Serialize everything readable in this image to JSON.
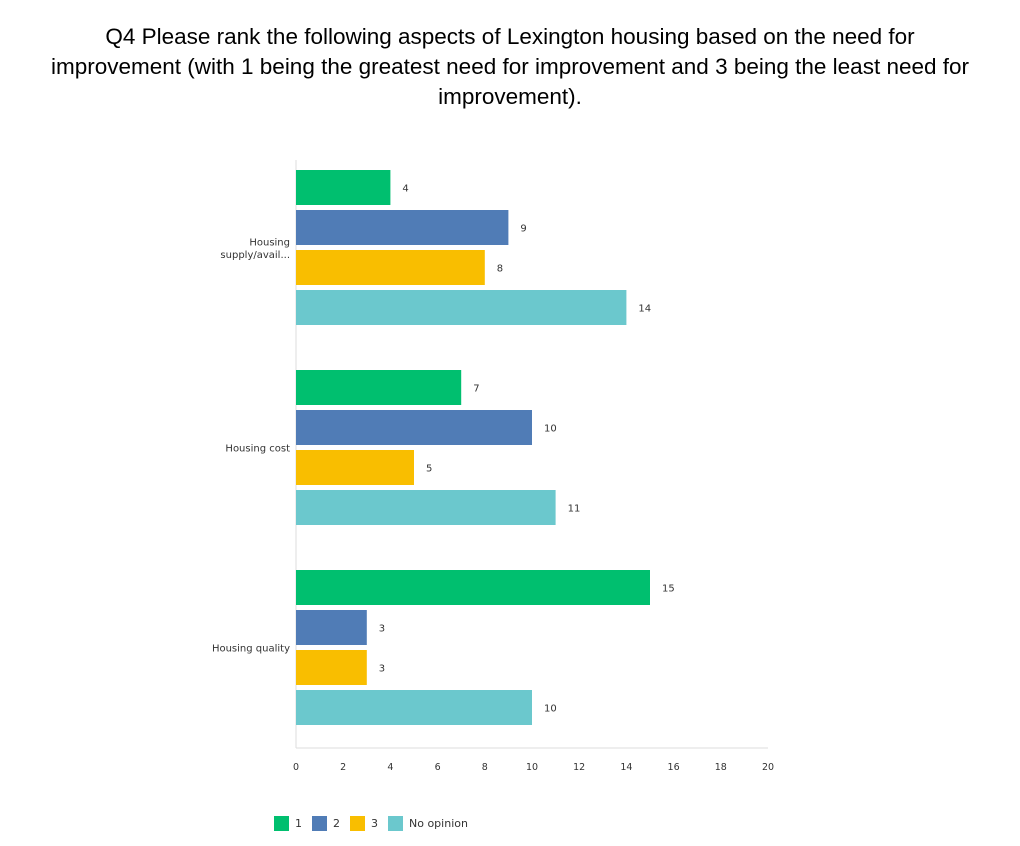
{
  "title_lines": [
    "Q4 Please rank the following aspects of Lexington housing based on the need for",
    "improvement (with 1 being the greatest need for improvement and 3 being the least need for",
    "improvement)."
  ],
  "colors": {
    "s1": "#00bf6f",
    "s2": "#507cb6",
    "s3": "#f9be00",
    "s4": "#6bc8cd",
    "axis": "#dddddd"
  },
  "chart_data": {
    "type": "bar",
    "orientation": "horizontal",
    "title": "Q4 Please rank the following aspects of Lexington housing based on the need for improvement (with 1 being the greatest need for improvement and 3 being the least need for improvement).",
    "categories": [
      "Housing supply/avail...",
      "Housing cost",
      "Housing quality"
    ],
    "category_label_lines": [
      [
        "Housing",
        "supply/avail..."
      ],
      [
        "Housing cost"
      ],
      [
        "Housing quality"
      ]
    ],
    "series": [
      {
        "name": "1",
        "values": [
          4,
          7,
          15
        ]
      },
      {
        "name": "2",
        "values": [
          9,
          10,
          3
        ]
      },
      {
        "name": "3",
        "values": [
          8,
          5,
          3
        ]
      },
      {
        "name": "No opinion",
        "values": [
          14,
          11,
          10
        ]
      }
    ],
    "xlim": [
      0,
      20
    ],
    "xticks": [
      0,
      2,
      4,
      6,
      8,
      10,
      12,
      14,
      16,
      18,
      20
    ],
    "xlabel": "",
    "ylabel": "",
    "legend_position": "bottom"
  }
}
